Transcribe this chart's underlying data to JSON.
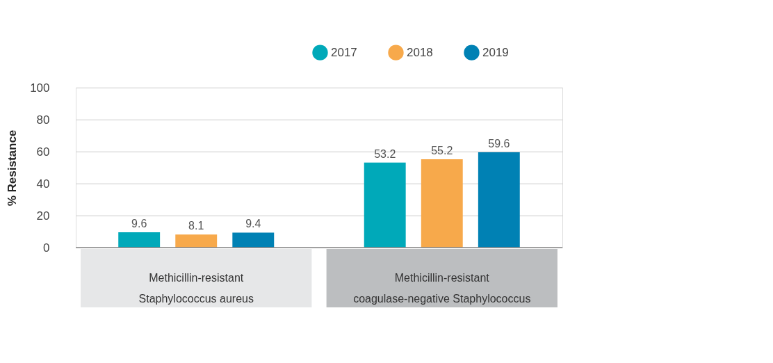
{
  "chart_data": {
    "type": "bar",
    "ylabel": "% Resistance",
    "categories": [
      "Methicillin-resistant\nStaphylococcus aureus",
      "Methicillin-resistant\ncoagulase-negative Staphylococcus"
    ],
    "series": [
      {
        "name": "2017",
        "color": "#00a9b9",
        "values": [
          9.6,
          53.2
        ]
      },
      {
        "name": "2018",
        "color": "#f7a94b",
        "values": [
          8.1,
          55.2
        ]
      },
      {
        "name": "2019",
        "color": "#0081b4",
        "values": [
          9.4,
          59.6
        ]
      }
    ],
    "ylim": [
      0,
      100
    ],
    "yticks": [
      0,
      20,
      40,
      60,
      80,
      100
    ],
    "grid": "y",
    "legend": "top right",
    "data_labels": true
  }
}
